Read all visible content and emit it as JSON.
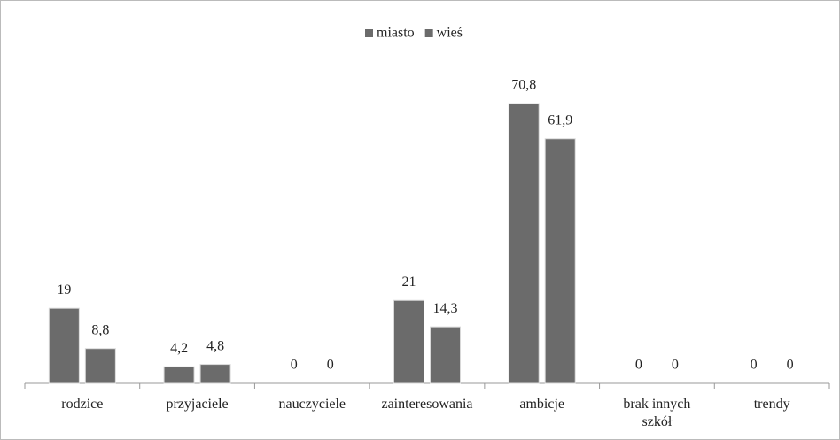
{
  "chart_data": {
    "type": "bar",
    "categories": [
      "rodzice",
      "przyjaciele",
      "nauczyciele",
      "zainteresowania",
      "ambicje",
      "brak innych szkół",
      "trendy"
    ],
    "series": [
      {
        "name": "miasto",
        "color": "#6b6b6b",
        "values": [
          19,
          4.2,
          0,
          21,
          70.8,
          0,
          0
        ],
        "value_labels": [
          "19",
          "4,2",
          "0",
          "21",
          "70,8",
          "0",
          "0"
        ]
      },
      {
        "name": "wieś",
        "color": "#6b6b6b",
        "values": [
          8.8,
          4.8,
          0,
          14.3,
          61.9,
          0,
          0
        ],
        "value_labels": [
          "8,8",
          "4,8",
          "0",
          "14,3",
          "61,9",
          "0",
          "0"
        ]
      }
    ],
    "ylim": [
      0,
      80
    ],
    "legend": "top"
  }
}
